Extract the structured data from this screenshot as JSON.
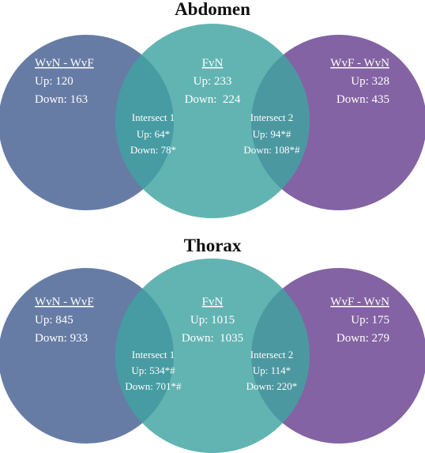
{
  "colors": {
    "left_circle": "#5f75a0",
    "middle_circle": "#4a9e9e",
    "right_circle": "#7c5b9e",
    "text": "#ffffff",
    "title": "#111111"
  },
  "panels": [
    {
      "title": "Abdomen",
      "left": {
        "name": "WvN - WvF",
        "up": "Up: 120",
        "down": "Down: 163"
      },
      "middle": {
        "name": "FvN",
        "up": "Up: 233",
        "down": "Down:  224"
      },
      "right": {
        "name": "WvF - WvN",
        "up": "Up: 328",
        "down": "Down: 435"
      },
      "intersect1": {
        "name": "Intersect 1",
        "up": "Up: 64*",
        "down": "Down: 78*"
      },
      "intersect2": {
        "name": "Intersect 2",
        "up": "Up: 94*#",
        "down": "Down: 108*#"
      }
    },
    {
      "title": "Thorax",
      "left": {
        "name": "WvN - WvF",
        "up": "Up: 845",
        "down": "Down: 933"
      },
      "middle": {
        "name": "FvN",
        "up": "Up: 1015",
        "down": "Down:  1035"
      },
      "right": {
        "name": "WvF - WvN",
        "up": "Up: 175",
        "down": "Down: 279"
      },
      "intersect1": {
        "name": "Intersect 1",
        "up": "Up: 534*#",
        "down": "Down: 701*#"
      },
      "intersect2": {
        "name": "Intersect 2",
        "up": "Up: 114*",
        "down": "Down: 220*"
      }
    }
  ]
}
